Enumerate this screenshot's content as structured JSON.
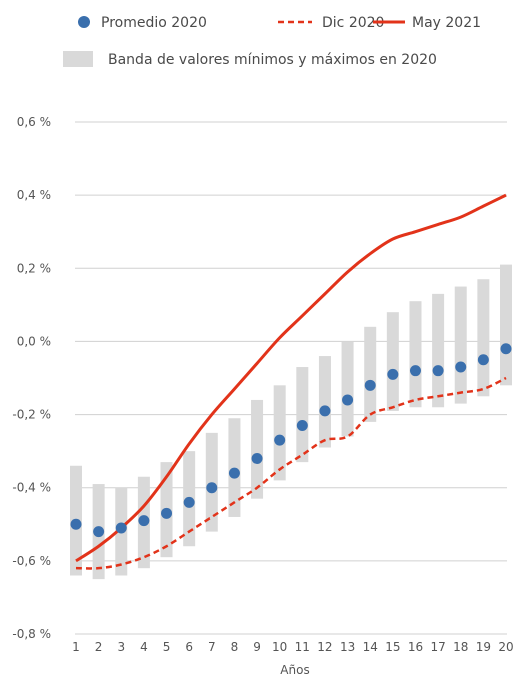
{
  "chart_data": {
    "type": "line",
    "categories": [
      1,
      2,
      3,
      4,
      5,
      6,
      7,
      8,
      9,
      10,
      11,
      12,
      13,
      14,
      15,
      16,
      17,
      18,
      19,
      20
    ],
    "xlabel": "Años",
    "ylabel": "",
    "ylim": [
      -0.8,
      0.6
    ],
    "y_ticks": [
      -0.8,
      -0.6,
      -0.4,
      -0.2,
      0.0,
      0.2,
      0.4,
      0.6
    ],
    "y_tick_labels": [
      "-0,8 %",
      "-0,6 %",
      "-0,4 %",
      "-0,2 %",
      "0,0 %",
      "0,2 %",
      "0,4 %",
      "0,6 %"
    ],
    "grid": "horizontal",
    "legend_position": "top",
    "series": [
      {
        "name": "Promedio 2020",
        "kind": "scatter",
        "color": "#3a6fad",
        "values": [
          -0.5,
          -0.52,
          -0.51,
          -0.49,
          -0.47,
          -0.44,
          -0.4,
          -0.36,
          -0.32,
          -0.27,
          -0.23,
          -0.19,
          -0.16,
          -0.12,
          -0.09,
          -0.08,
          -0.08,
          -0.07,
          -0.05,
          -0.02
        ]
      },
      {
        "name": "Dic 2020",
        "kind": "dashed-line",
        "color": "#e2331a",
        "values": [
          -0.62,
          -0.62,
          -0.61,
          -0.59,
          -0.56,
          -0.52,
          -0.48,
          -0.44,
          -0.4,
          -0.35,
          -0.31,
          -0.27,
          -0.26,
          -0.2,
          -0.18,
          -0.16,
          -0.15,
          -0.14,
          -0.13,
          -0.1
        ]
      },
      {
        "name": "May 2021",
        "kind": "line",
        "color": "#e2331a",
        "values": [
          -0.6,
          -0.56,
          -0.51,
          -0.45,
          -0.37,
          -0.28,
          -0.2,
          -0.13,
          -0.06,
          0.01,
          0.07,
          0.13,
          0.19,
          0.24,
          0.28,
          0.3,
          0.32,
          0.34,
          0.37,
          0.4
        ]
      },
      {
        "name": "Banda de valores mínimos y máximos en 2020",
        "kind": "band",
        "color": "#d9d9d9",
        "min": [
          -0.64,
          -0.65,
          -0.64,
          -0.62,
          -0.59,
          -0.56,
          -0.52,
          -0.48,
          -0.43,
          -0.38,
          -0.33,
          -0.29,
          -0.26,
          -0.22,
          -0.19,
          -0.18,
          -0.18,
          -0.17,
          -0.15,
          -0.12
        ],
        "max": [
          -0.34,
          -0.39,
          -0.4,
          -0.37,
          -0.33,
          -0.3,
          -0.25,
          -0.21,
          -0.16,
          -0.12,
          -0.07,
          -0.04,
          0.0,
          0.04,
          0.08,
          0.11,
          0.13,
          0.15,
          0.17,
          0.21
        ]
      }
    ]
  }
}
